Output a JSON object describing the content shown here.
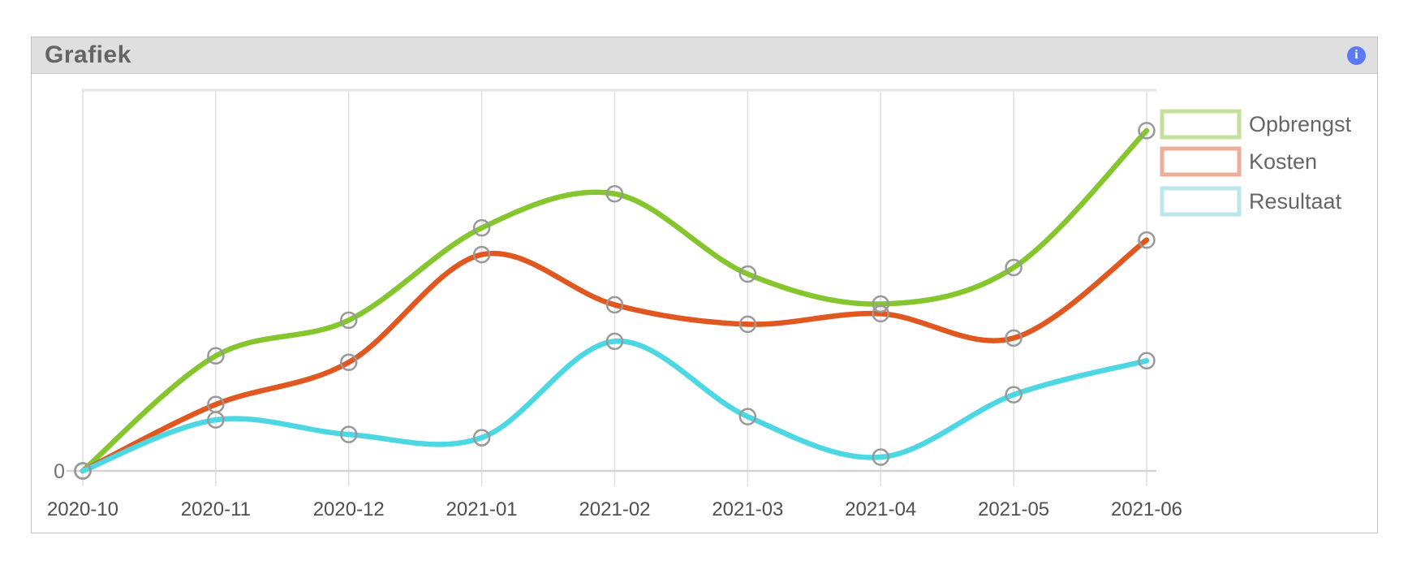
{
  "header": {
    "title": "Grafiek",
    "info_icon_glyph": "i"
  },
  "colors": {
    "panel_border": "#bfbfbf",
    "header_bg": "#dfdfdf",
    "title_text": "#646464",
    "info_icon_bg": "#5b79f2",
    "gridline": "#e1e1e1",
    "plot_top_border": "#e8e8e8",
    "axis_baseline": "#d4d4d4",
    "x_label_text": "#4f4f4f",
    "zero_label_text": "#737373",
    "legend_text": "#666666",
    "marker_stroke": "#999999"
  },
  "chart_data": {
    "type": "line",
    "title": "Grafiek",
    "xlabel": "",
    "ylabel": "",
    "categories": [
      "2020-10",
      "2020-11",
      "2020-12",
      "2021-01",
      "2021-02",
      "2021-03",
      "2021-04",
      "2021-05",
      "2021-06"
    ],
    "series": [
      {
        "name": "Opbrengst",
        "color": "#85C52E",
        "legend_color": "#C4E09C",
        "values": [
          0,
          142,
          186,
          300,
          342,
          243,
          206,
          251,
          420
        ]
      },
      {
        "name": "Kosten",
        "color": "#E0571F",
        "legend_color": "#EDAD9B",
        "values": [
          0,
          82,
          134,
          267,
          205,
          181,
          194,
          164,
          285
        ]
      },
      {
        "name": "Resultaat",
        "color": "#4CD7E3",
        "legend_color": "#BCE7EA",
        "values": [
          0,
          63,
          45,
          41,
          160,
          67,
          17,
          94,
          136
        ]
      }
    ],
    "units": "relative units (y-axis shows only 0; values estimated proportionally from plot)",
    "ylim": [
      0,
      470
    ],
    "y_tick_labels": [
      "0"
    ],
    "grid": "vertical-gridlines-only",
    "legend_position": "top-right",
    "line_style": "smooth",
    "marker_style": "open-circle"
  }
}
